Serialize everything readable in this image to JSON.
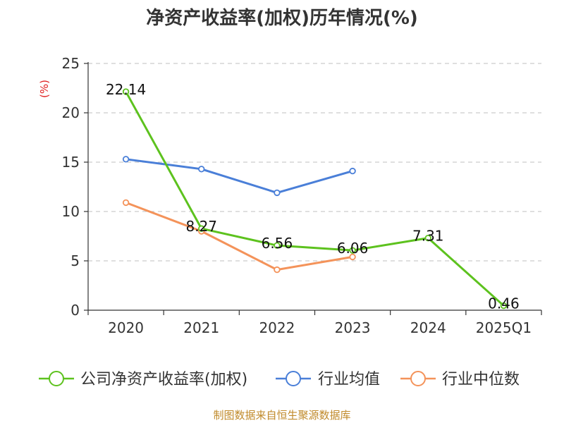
{
  "chart_data": {
    "type": "line",
    "title": "净资产收益率(加权)历年情况(%)",
    "ylabel": "(%)",
    "xlabel": "",
    "categories": [
      "2020",
      "2021",
      "2022",
      "2023",
      "2024",
      "2025Q1"
    ],
    "ylim": [
      0,
      25
    ],
    "yticks": [
      0,
      5,
      10,
      15,
      20,
      25
    ],
    "grid": true,
    "legend_position": "bottom",
    "series": [
      {
        "name": "公司净资产收益率(加权)",
        "color": "#5dc21e",
        "values": [
          22.14,
          8.27,
          6.56,
          6.06,
          7.31,
          0.46
        ],
        "labels": [
          "22.14",
          "8.27",
          "6.56",
          "6.06",
          "7.31",
          "0.46"
        ]
      },
      {
        "name": "行业均值",
        "color": "#4a7fd8",
        "values": [
          15.3,
          14.3,
          11.9,
          14.1,
          null,
          null
        ]
      },
      {
        "name": "行业中位数",
        "color": "#f4935a",
        "values": [
          10.9,
          8.0,
          4.1,
          5.4,
          null,
          null
        ]
      }
    ]
  },
  "source_text": "制图数据来自恒生聚源数据库"
}
